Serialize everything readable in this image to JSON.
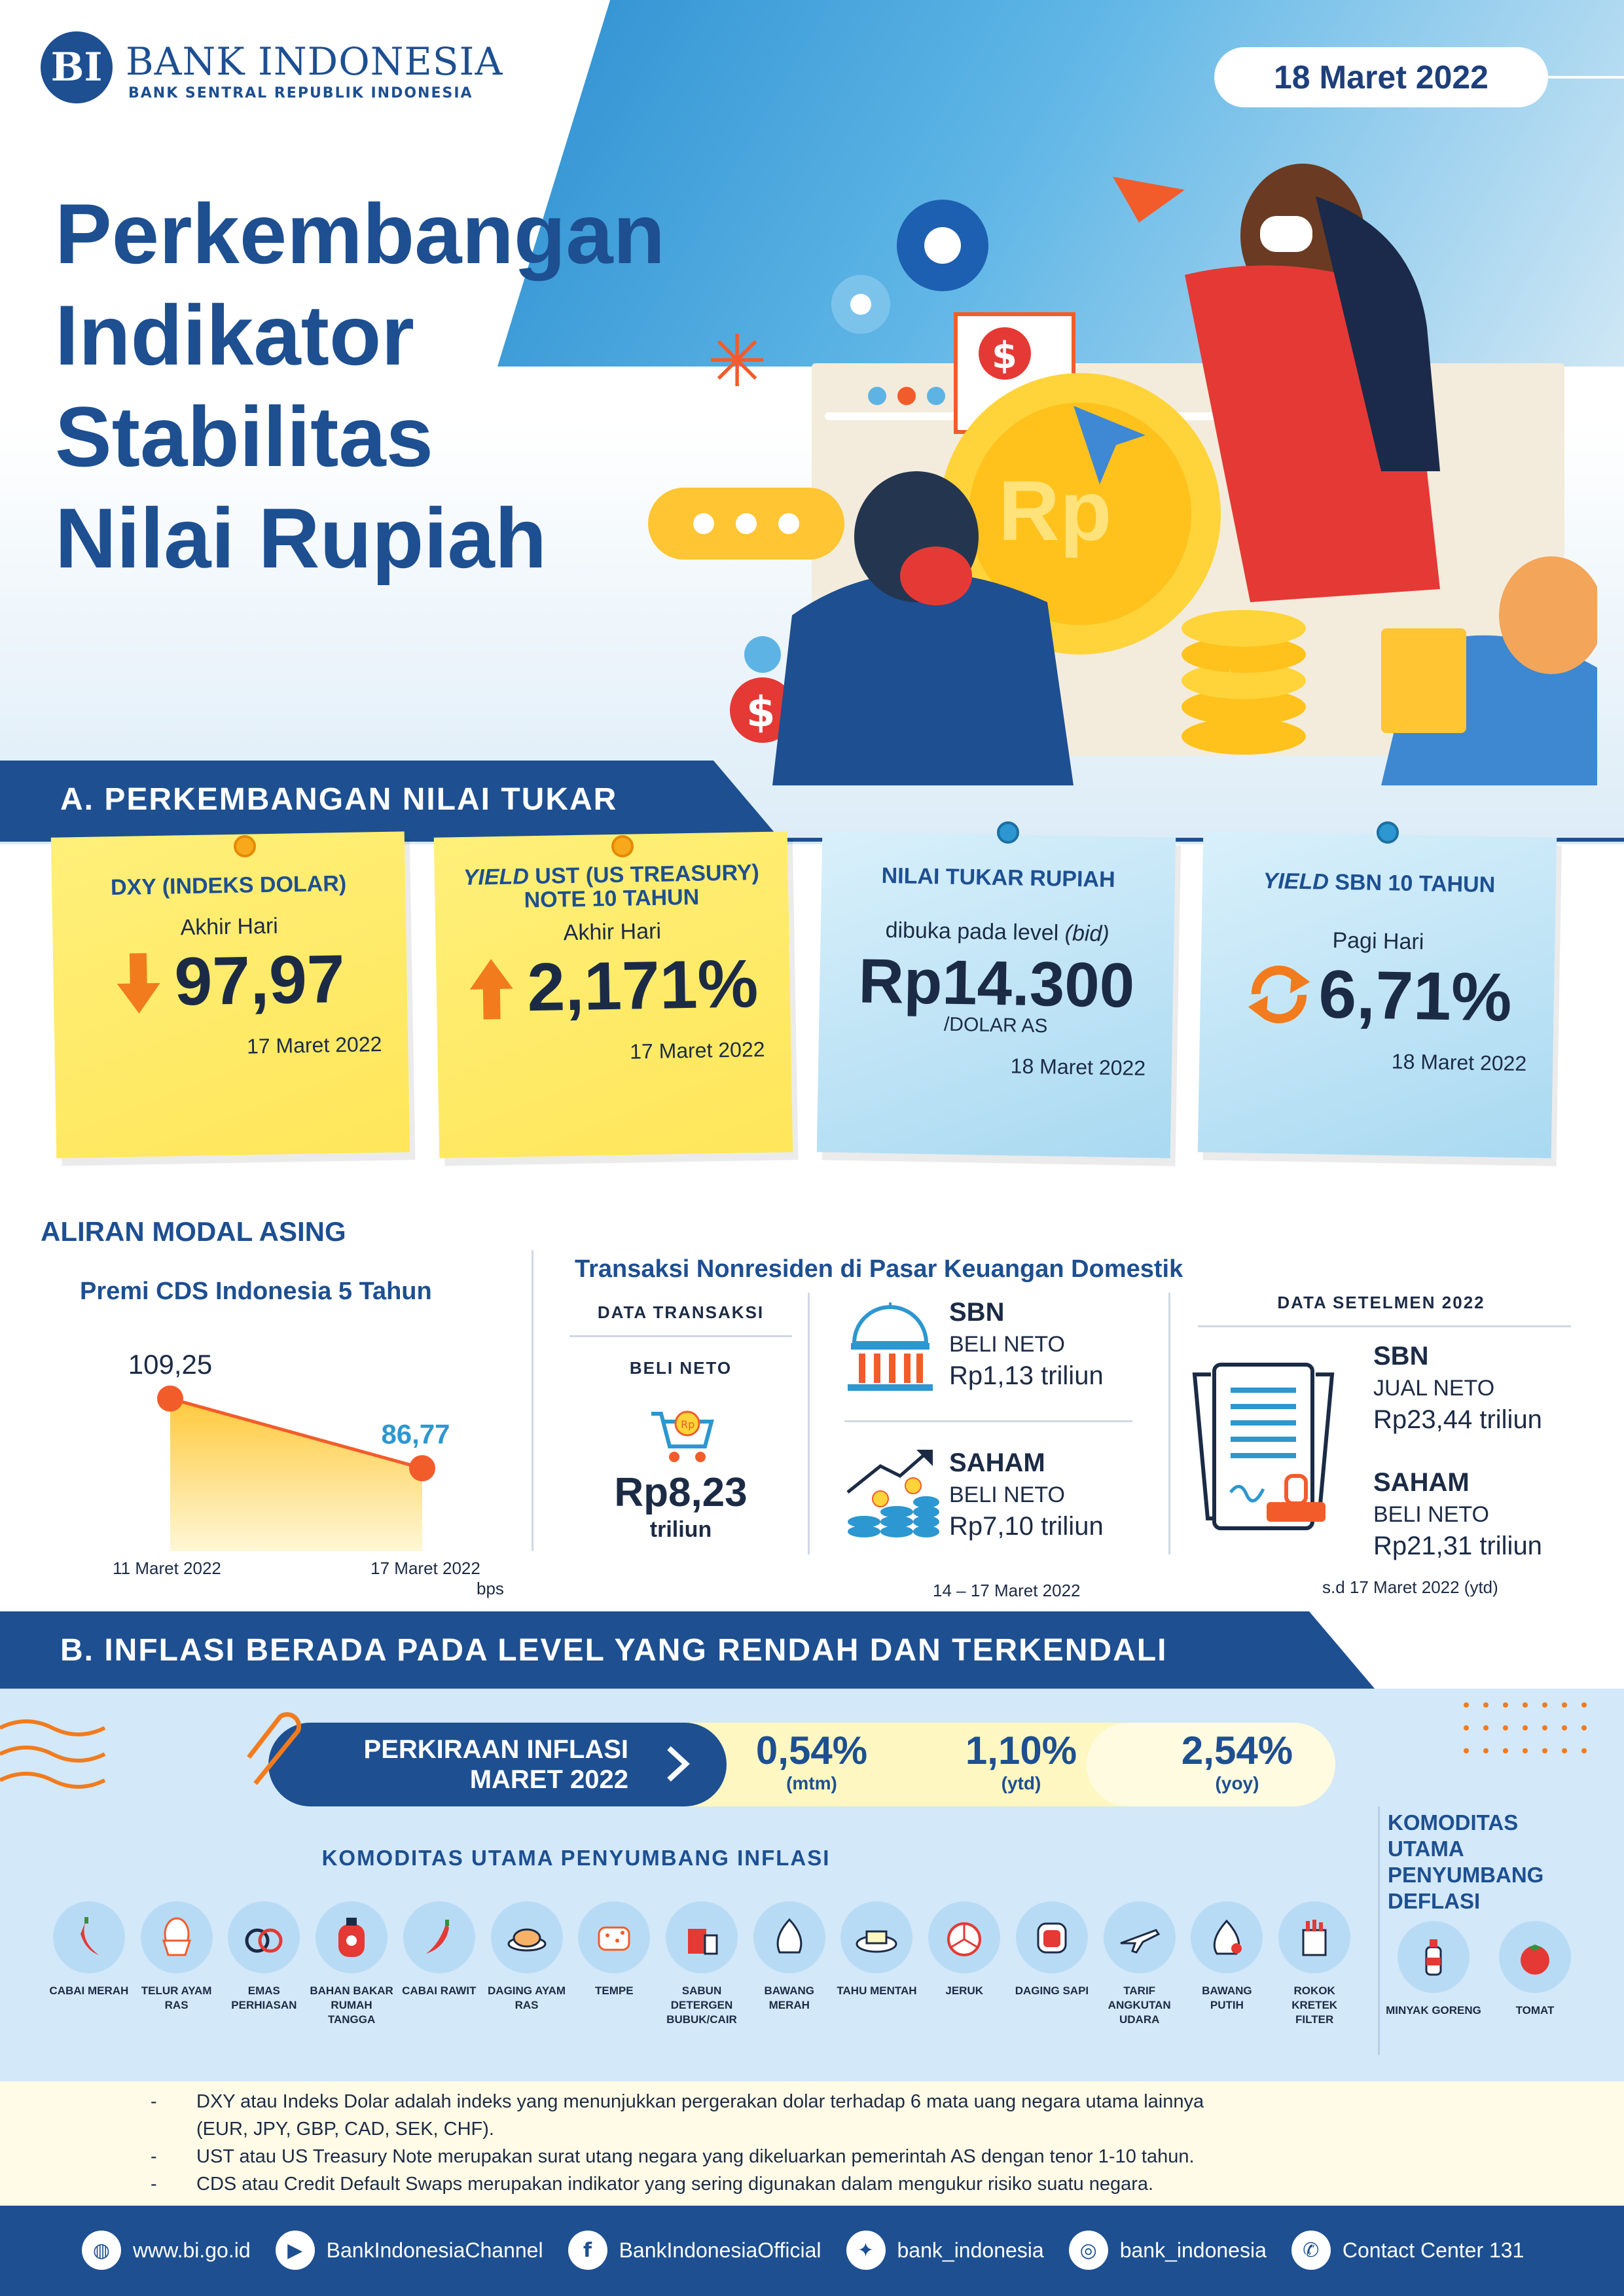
{
  "header": {
    "logo_letters": "BI",
    "bank_name": "BANK INDONESIA",
    "bank_sub": "BANK SENTRAL REPUBLIK INDONESIA",
    "date": "18 Maret 2022",
    "title_lines": [
      "Perkembangan",
      "Indikator",
      "Stabilitas",
      "Nilai Rupiah"
    ],
    "illustration_coin": "Rp"
  },
  "section_a": {
    "heading": "A. PERKEMBANGAN NILAI TUKAR",
    "cards": [
      {
        "title": "DXY (INDEKS DOLAR)",
        "sub": "Akhir Hari",
        "value": "97,97",
        "date": "17 Maret 2022",
        "trend": "down"
      },
      {
        "title_italic": "YIELD",
        "title_rest": " UST (US TREASURY) NOTE  10 TAHUN",
        "sub": "Akhir Hari",
        "value": "2,171%",
        "date": "17 Maret 2022",
        "trend": "up"
      },
      {
        "title": "NILAI TUKAR RUPIAH",
        "sub": "dibuka pada level ",
        "sub_italic": "(bid)",
        "value": "Rp14.300",
        "unit": "/DOLAR AS",
        "date": "18 Maret 2022"
      },
      {
        "title_italic": "YIELD",
        "title_rest": " SBN 10 TAHUN",
        "sub": "Pagi Hari",
        "value": "6,71%",
        "date": "18 Maret 2022",
        "trend": "stable"
      }
    ],
    "capital_flow": {
      "heading": "ALIRAN MODAL ASING",
      "cds_title": "Premi CDS Indonesia 5 Tahun",
      "cds_unit": "bps"
    },
    "nonresident": {
      "title": "Transaksi Nonresiden di Pasar Keuangan Domestik",
      "data_transaksi": "DATA TRANSAKSI",
      "beli_neto": "BELI NETO",
      "total_value": "Rp8,23",
      "total_unit": "triliun",
      "sbn": {
        "label": "SBN",
        "type": "BELI NETO",
        "value": "Rp1,13 triliun"
      },
      "saham": {
        "label": "SAHAM",
        "type": "BELI NETO",
        "value": "Rp7,10 triliun"
      },
      "period": "14 – 17 Maret  2022"
    },
    "settlement": {
      "title": "DATA SETELMEN 2022",
      "sbn": {
        "label": "SBN",
        "type": "JUAL NETO",
        "value": "Rp23,44 triliun"
      },
      "saham": {
        "label": "SAHAM",
        "type": "BELI NETO",
        "value": "Rp21,31 triliun"
      },
      "period": "s.d 17 Maret 2022 (ytd)"
    }
  },
  "chart_data": {
    "type": "area",
    "title": "Premi CDS Indonesia 5 Tahun",
    "x": [
      "11 Maret 2022",
      "17  Maret 2022"
    ],
    "values": [
      109.25,
      86.77
    ],
    "value_labels": [
      "109,25",
      "86,77"
    ],
    "ylabel": "bps"
  },
  "section_b": {
    "heading": "B. INFLASI BERADA PADA LEVEL YANG RENDAH DAN TERKENDALI",
    "forecast_label_1": "PERKIRAAN INFLASI",
    "forecast_label_2": "MARET 2022",
    "rates": [
      {
        "value": "0,54%",
        "label": "(mtm)"
      },
      {
        "value": "1,10%",
        "label": "(ytd)"
      },
      {
        "value": "2,54%",
        "label": "(yoy)"
      }
    ],
    "inflation_title": "KOMODITAS UTAMA PENYUMBANG INFLASI",
    "inflation_items": [
      {
        "label": "CABAI MERAH",
        "icon": "chili-icon"
      },
      {
        "label": "TELUR AYAM RAS",
        "icon": "egg-icon"
      },
      {
        "label": "EMAS PERHIASAN",
        "icon": "ring-icon"
      },
      {
        "label": "BAHAN BAKAR RUMAH TANGGA",
        "icon": "gas-tank-icon"
      },
      {
        "label": "CABAI RAWIT",
        "icon": "small-chili-icon"
      },
      {
        "label": "DAGING AYAM RAS",
        "icon": "chicken-icon"
      },
      {
        "label": "TEMPE",
        "icon": "tempe-icon"
      },
      {
        "label": "SABUN DETERGEN BUBUK/CAIR",
        "icon": "detergent-icon"
      },
      {
        "label": "BAWANG MERAH",
        "icon": "shallot-icon"
      },
      {
        "label": "TAHU MENTAH",
        "icon": "tofu-icon"
      },
      {
        "label": "JERUK",
        "icon": "orange-icon"
      },
      {
        "label": "DAGING SAPI",
        "icon": "beef-icon"
      },
      {
        "label": "TARIF ANGKUTAN UDARA",
        "icon": "airplane-icon"
      },
      {
        "label": "BAWANG PUTIH",
        "icon": "garlic-icon"
      },
      {
        "label": "ROKOK KRETEK FILTER",
        "icon": "cigarette-icon"
      }
    ],
    "deflation_title": "KOMODITAS UTAMA PENYUMBANG DEFLASI",
    "deflation_items": [
      {
        "label": "MINYAK GORENG",
        "icon": "oil-bottle-icon"
      },
      {
        "label": "TOMAT",
        "icon": "tomato-icon"
      }
    ]
  },
  "notes": [
    "DXY atau Indeks Dolar adalah indeks yang menunjukkan pergerakan dolar terhadap 6 mata uang negara utama lainnya",
    "(EUR, JPY, GBP, CAD, SEK, CHF).",
    "UST atau US Treasury Note merupakan surat utang negara yang dikeluarkan pemerintah AS dengan tenor 1-10 tahun.",
    "CDS atau Credit Default Swaps merupakan indikator yang sering digunakan dalam mengukur risiko suatu negara."
  ],
  "footer": [
    {
      "icon": "globe-icon",
      "text": "www.bi.go.id"
    },
    {
      "icon": "youtube-icon",
      "text": "BankIndonesiaChannel"
    },
    {
      "icon": "facebook-icon",
      "text": "BankIndonesiaOfficial"
    },
    {
      "icon": "twitter-icon",
      "text": "bank_indonesia"
    },
    {
      "icon": "instagram-icon",
      "text": "bank_indonesia"
    },
    {
      "icon": "phone-icon",
      "text": "Contact Center 131"
    }
  ],
  "colors": {
    "navy": "#1d4f91",
    "yellow_card": "#ffe65a",
    "blue_card": "#a9d9f1",
    "arrow_orange": "#f27b1d",
    "cds_point": "#f25c2a",
    "cds_end_label": "#2c97d0"
  }
}
